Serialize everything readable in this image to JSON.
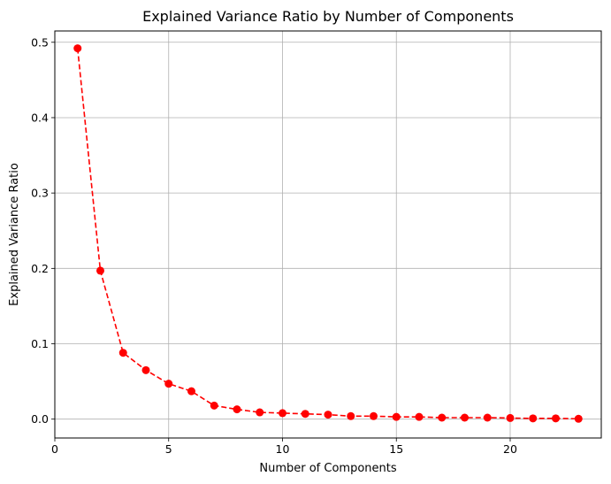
{
  "chart_data": {
    "type": "line",
    "title": "Explained Variance Ratio by Number of Components",
    "xlabel": "Number of Components",
    "ylabel": "Explained Variance Ratio",
    "xlim": [
      0,
      24
    ],
    "ylim": [
      -0.025,
      0.515
    ],
    "xticks": [
      0,
      5,
      10,
      15,
      20
    ],
    "yticks": [
      0.0,
      0.1,
      0.2,
      0.3,
      0.4,
      0.5
    ],
    "ytick_labels": [
      "0.0",
      "0.1",
      "0.2",
      "0.3",
      "0.4",
      "0.5"
    ],
    "grid": true,
    "legend": "none",
    "series": [
      {
        "color": "#ff0000",
        "linestyle": "dashed",
        "marker": "circle",
        "x": [
          1,
          2,
          3,
          4,
          5,
          6,
          7,
          8,
          9,
          10,
          11,
          12,
          13,
          14,
          15,
          16,
          17,
          18,
          19,
          20,
          21,
          22,
          23
        ],
        "y": [
          0.492,
          0.197,
          0.088,
          0.065,
          0.047,
          0.037,
          0.018,
          0.013,
          0.009,
          0.008,
          0.007,
          0.006,
          0.004,
          0.004,
          0.003,
          0.003,
          0.002,
          0.002,
          0.002,
          0.0015,
          0.001,
          0.001,
          0.0005
        ]
      }
    ]
  }
}
